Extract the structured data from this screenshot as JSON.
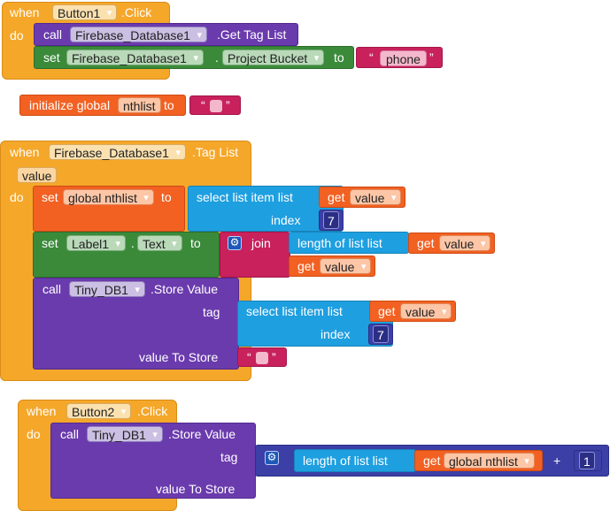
{
  "block1": {
    "when": "when",
    "do": "do",
    "component": "Button1",
    "event": ".Click",
    "row1": {
      "call": "call",
      "component": "Firebase_Database1",
      "method": ".Get Tag List"
    },
    "row2": {
      "set": "set",
      "component": "Firebase_Database1",
      "dot": ".",
      "property": "Project Bucket",
      "to": "to",
      "text_value": "phone"
    }
  },
  "block2": {
    "label": "initialize global",
    "name": "nthlist",
    "to": "to"
  },
  "block3": {
    "when": "when",
    "do": "do",
    "component": "Firebase_Database1",
    "event": ".Tag List",
    "param": "value",
    "set1": {
      "set": "set",
      "var": "global nthlist",
      "to": "to",
      "select_label": "select list item  list",
      "get": "get",
      "get_var": "value",
      "index_label": "index",
      "index_value": "7"
    },
    "set2": {
      "set": "set",
      "component": "Label1",
      "dot": ".",
      "property": "Text",
      "to": "to",
      "join": "join",
      "length_label": "length of list  list",
      "get": "get",
      "get_var": "value",
      "get2": "get",
      "get2_var": "value"
    },
    "call": {
      "call": "call",
      "component": "Tiny_DB1",
      "method": ".Store Value",
      "tag": "tag",
      "select_label": "select list item  list",
      "get": "get",
      "get_var": "value",
      "index_label": "index",
      "index_value": "7",
      "value_to_store": "value To Store"
    }
  },
  "block4": {
    "when": "when",
    "do": "do",
    "component": "Button2",
    "event": ".Click",
    "call": {
      "call": "call",
      "component": "Tiny_DB1",
      "method": ".Store Value",
      "tag": "tag",
      "length_label": "length of list  list",
      "get": "get",
      "get_var": "global nthlist",
      "plus": "+",
      "num": "1",
      "value_to_store": "value To Store"
    }
  },
  "quote_open": "“",
  "quote_close": "”",
  "gear_symbol": "⚙",
  "colors": {
    "event": "#f5a72a",
    "procedure_call": "#6a3bad",
    "setter": "#3a8a3a",
    "variable": "#f26122",
    "text": "#c8215c",
    "list": "#1e9fe0",
    "math": "#3c3fa6"
  }
}
